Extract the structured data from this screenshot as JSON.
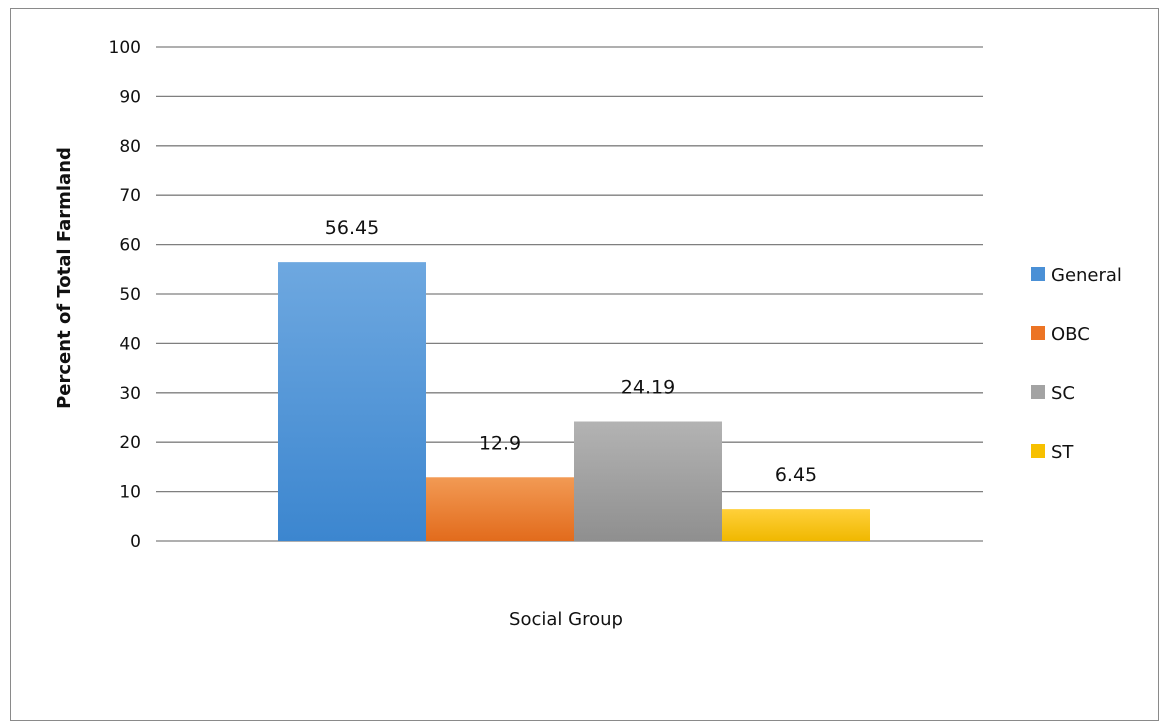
{
  "chart_data": {
    "type": "bar",
    "title": "",
    "xlabel": "Social Group",
    "ylabel": "Percent of Total Farmland",
    "ylim": [
      0,
      100
    ],
    "yticks": [
      0,
      10,
      20,
      30,
      40,
      50,
      60,
      70,
      80,
      90,
      100
    ],
    "grid": true,
    "legend_position": "right",
    "series": [
      {
        "name": "General",
        "value": 56.45,
        "label": "56.45",
        "color": "#4a90d6"
      },
      {
        "name": "OBC",
        "value": 12.9,
        "label": "12.9",
        "color": "#ec7424"
      },
      {
        "name": "SC",
        "value": 24.19,
        "label": "24.19",
        "color": "#a3a3a3"
      },
      {
        "name": "ST",
        "value": 6.45,
        "label": "6.45",
        "color": "#f7c000"
      }
    ]
  }
}
